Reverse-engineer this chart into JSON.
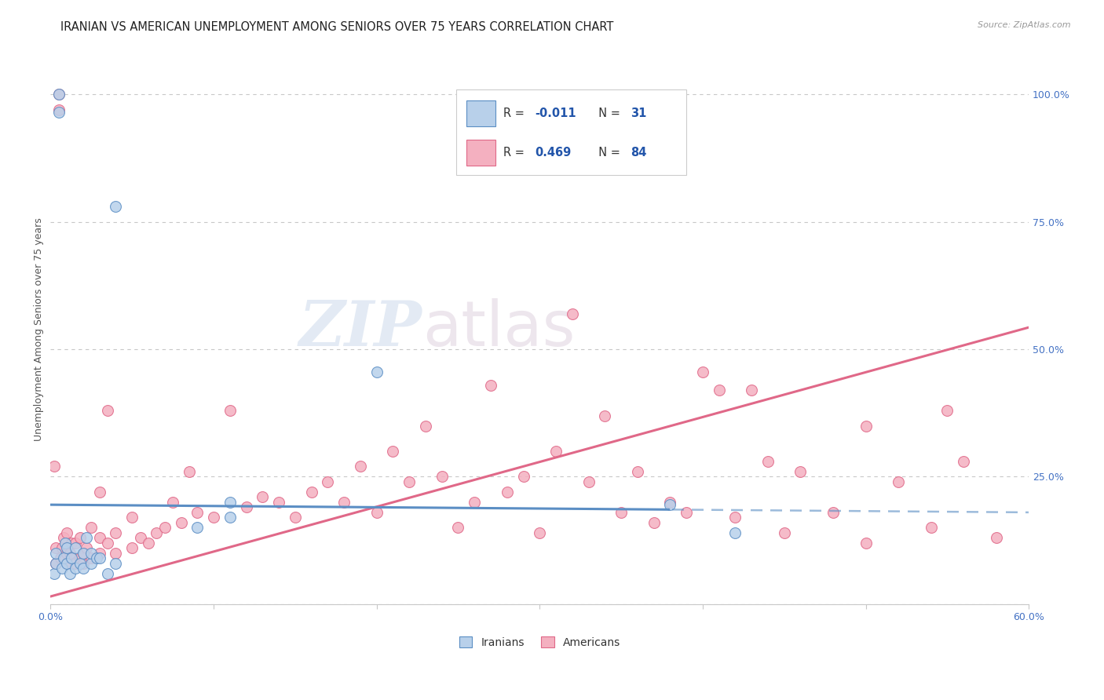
{
  "title": "IRANIAN VS AMERICAN UNEMPLOYMENT AMONG SENIORS OVER 75 YEARS CORRELATION CHART",
  "source": "Source: ZipAtlas.com",
  "ylabel": "Unemployment Among Seniors over 75 years",
  "xlim": [
    0.0,
    0.6
  ],
  "ylim": [
    0.0,
    1.08
  ],
  "iranians_R": "-0.011",
  "iranians_N": "31",
  "americans_R": "0.469",
  "americans_N": "84",
  "iranian_color": "#b8d0ea",
  "american_color": "#f4b0c0",
  "iranian_line_color": "#5b8ec4",
  "american_line_color": "#e06888",
  "background_color": "#ffffff",
  "watermark_zip": "ZIP",
  "watermark_atlas": "atlas",
  "grid_color": "#c8c8c8",
  "title_fontsize": 10.5,
  "axis_label_fontsize": 9,
  "tick_fontsize": 9,
  "iran_reg_slope": -0.025,
  "iran_reg_intercept": 0.195,
  "iran_line_solid_end": 0.38,
  "amer_reg_slope": 0.88,
  "amer_reg_intercept": 0.015,
  "amer_line_solid_end": 0.6,
  "iranians_x": [
    0.002,
    0.003,
    0.003,
    0.005,
    0.005,
    0.007,
    0.008,
    0.009,
    0.01,
    0.01,
    0.012,
    0.013,
    0.015,
    0.015,
    0.018,
    0.02,
    0.02,
    0.022,
    0.025,
    0.025,
    0.028,
    0.03,
    0.035,
    0.04,
    0.04,
    0.09,
    0.11,
    0.11,
    0.2,
    0.38,
    0.42
  ],
  "iranians_y": [
    0.06,
    0.08,
    0.1,
    0.965,
    1.0,
    0.07,
    0.09,
    0.12,
    0.08,
    0.11,
    0.06,
    0.09,
    0.07,
    0.11,
    0.08,
    0.07,
    0.1,
    0.13,
    0.08,
    0.1,
    0.09,
    0.09,
    0.06,
    0.08,
    0.78,
    0.15,
    0.17,
    0.2,
    0.455,
    0.195,
    0.14
  ],
  "americans_x": [
    0.002,
    0.003,
    0.003,
    0.005,
    0.005,
    0.006,
    0.007,
    0.008,
    0.01,
    0.01,
    0.01,
    0.012,
    0.013,
    0.015,
    0.015,
    0.018,
    0.018,
    0.02,
    0.02,
    0.022,
    0.025,
    0.025,
    0.03,
    0.03,
    0.03,
    0.035,
    0.035,
    0.04,
    0.04,
    0.05,
    0.05,
    0.055,
    0.06,
    0.065,
    0.07,
    0.075,
    0.08,
    0.085,
    0.09,
    0.1,
    0.11,
    0.12,
    0.13,
    0.14,
    0.15,
    0.16,
    0.17,
    0.18,
    0.19,
    0.2,
    0.21,
    0.22,
    0.23,
    0.24,
    0.25,
    0.26,
    0.27,
    0.28,
    0.29,
    0.3,
    0.31,
    0.32,
    0.33,
    0.34,
    0.35,
    0.36,
    0.37,
    0.38,
    0.39,
    0.4,
    0.41,
    0.42,
    0.43,
    0.44,
    0.45,
    0.46,
    0.48,
    0.5,
    0.5,
    0.52,
    0.54,
    0.55,
    0.56,
    0.58
  ],
  "americans_y": [
    0.27,
    0.08,
    0.11,
    0.97,
    1.0,
    0.09,
    0.11,
    0.13,
    0.08,
    0.1,
    0.14,
    0.1,
    0.12,
    0.08,
    0.12,
    0.09,
    0.13,
    0.08,
    0.1,
    0.11,
    0.09,
    0.15,
    0.1,
    0.13,
    0.22,
    0.12,
    0.38,
    0.1,
    0.14,
    0.11,
    0.17,
    0.13,
    0.12,
    0.14,
    0.15,
    0.2,
    0.16,
    0.26,
    0.18,
    0.17,
    0.38,
    0.19,
    0.21,
    0.2,
    0.17,
    0.22,
    0.24,
    0.2,
    0.27,
    0.18,
    0.3,
    0.24,
    0.35,
    0.25,
    0.15,
    0.2,
    0.43,
    0.22,
    0.25,
    0.14,
    0.3,
    0.57,
    0.24,
    0.37,
    0.18,
    0.26,
    0.16,
    0.2,
    0.18,
    0.455,
    0.42,
    0.17,
    0.42,
    0.28,
    0.14,
    0.26,
    0.18,
    0.35,
    0.12,
    0.24,
    0.15,
    0.38,
    0.28,
    0.13
  ]
}
